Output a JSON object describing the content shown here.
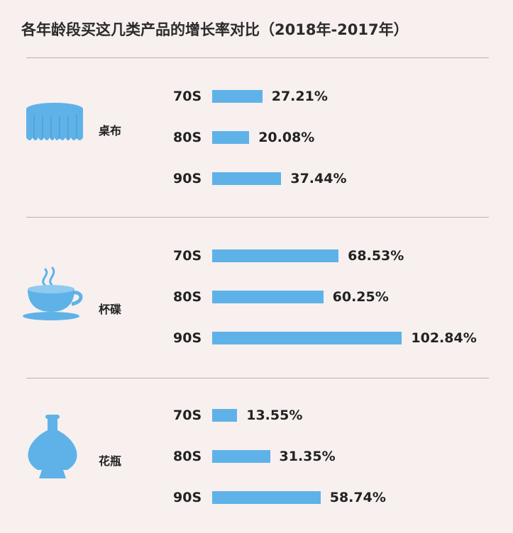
{
  "title": "各年龄段买这几类产品的增长率对比（2018年-2017年）",
  "colors": {
    "bar": "#5fb2e8",
    "icon": "#5fb2e8",
    "background": "#f7f0ef",
    "divider": "#b9b2b2"
  },
  "chart_data": {
    "type": "bar",
    "orientation": "horizontal",
    "title": "各年龄段买这几类产品的增长率对比（2018年-2017年）",
    "unit": "%",
    "groups": [
      {
        "category": "桌布",
        "icon": "tablecloth-icon",
        "items": [
          {
            "age": "70S",
            "value": 27.21,
            "label": "27.21%"
          },
          {
            "age": "80S",
            "value": 20.08,
            "label": "20.08%"
          },
          {
            "age": "90S",
            "value": 37.44,
            "label": "37.44%"
          }
        ]
      },
      {
        "category": "杯碟",
        "icon": "teacup-icon",
        "items": [
          {
            "age": "70S",
            "value": 68.53,
            "label": "68.53%"
          },
          {
            "age": "80S",
            "value": 60.25,
            "label": "60.25%"
          },
          {
            "age": "90S",
            "value": 102.84,
            "label": "102.84%"
          }
        ]
      },
      {
        "category": "花瓶",
        "icon": "vase-icon",
        "items": [
          {
            "age": "70S",
            "value": 13.55,
            "label": "13.55%"
          },
          {
            "age": "80S",
            "value": 31.35,
            "label": "31.35%"
          },
          {
            "age": "90S",
            "value": 58.74,
            "label": "58.74%"
          }
        ]
      }
    ]
  }
}
